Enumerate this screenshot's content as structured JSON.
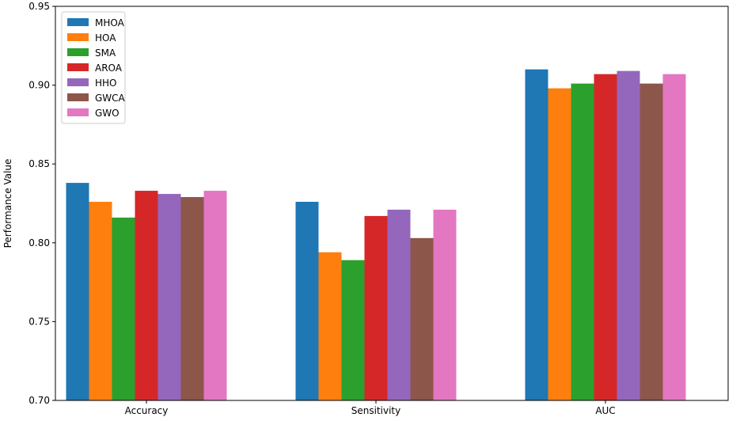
{
  "chart_data": {
    "type": "bar",
    "categories": [
      "Accuracy",
      "Sensitivity",
      "AUC"
    ],
    "series": [
      {
        "name": "MHOA",
        "color": "#1f77b4",
        "values": [
          0.838,
          0.826,
          0.91
        ]
      },
      {
        "name": "HOA",
        "color": "#ff7f0e",
        "values": [
          0.826,
          0.794,
          0.898
        ]
      },
      {
        "name": "SMA",
        "color": "#2ca02c",
        "values": [
          0.816,
          0.789,
          0.901
        ]
      },
      {
        "name": "AROA",
        "color": "#d62728",
        "values": [
          0.833,
          0.817,
          0.907
        ]
      },
      {
        "name": "HHO",
        "color": "#9467bd",
        "values": [
          0.831,
          0.821,
          0.909
        ]
      },
      {
        "name": "GWCA",
        "color": "#8c564b",
        "values": [
          0.829,
          0.803,
          0.901
        ]
      },
      {
        "name": "GWO",
        "color": "#e377c2",
        "values": [
          0.833,
          0.821,
          0.907
        ]
      }
    ],
    "title": "",
    "xlabel": "",
    "ylabel": "Performance Value",
    "ylim": [
      0.7,
      0.95
    ],
    "yticks": [
      "0.70",
      "0.75",
      "0.80",
      "0.85",
      "0.90",
      "0.95"
    ],
    "grid": false,
    "legend": "top-left"
  }
}
